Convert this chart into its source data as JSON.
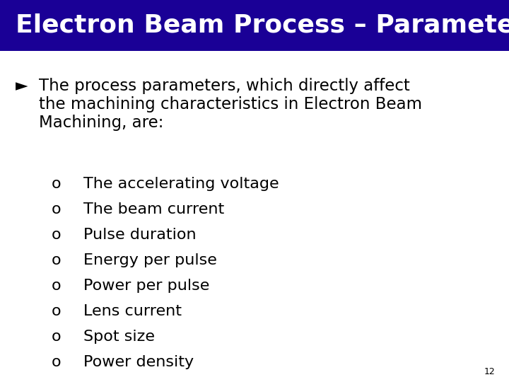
{
  "title": "Electron Beam Process – Parameters",
  "title_bg_color": "#1a0096",
  "title_text_color": "#ffffff",
  "body_bg_color": "#ffffff",
  "main_bullet_symbol": "►",
  "main_bullet_lines": [
    "The process parameters, which directly affect",
    "the machining characteristics in Electron Beam",
    "Machining, are:"
  ],
  "sub_bullet_symbol": "o",
  "sub_bullets": [
    "The accelerating voltage",
    "The beam current",
    "Pulse duration",
    "Energy per pulse",
    "Power per pulse",
    "Lens current",
    "Spot size",
    "Power density"
  ],
  "page_number": "12",
  "text_color": "#000000",
  "font_size_title": 26,
  "font_size_main": 16.5,
  "font_size_sub": 16,
  "font_size_page": 9
}
